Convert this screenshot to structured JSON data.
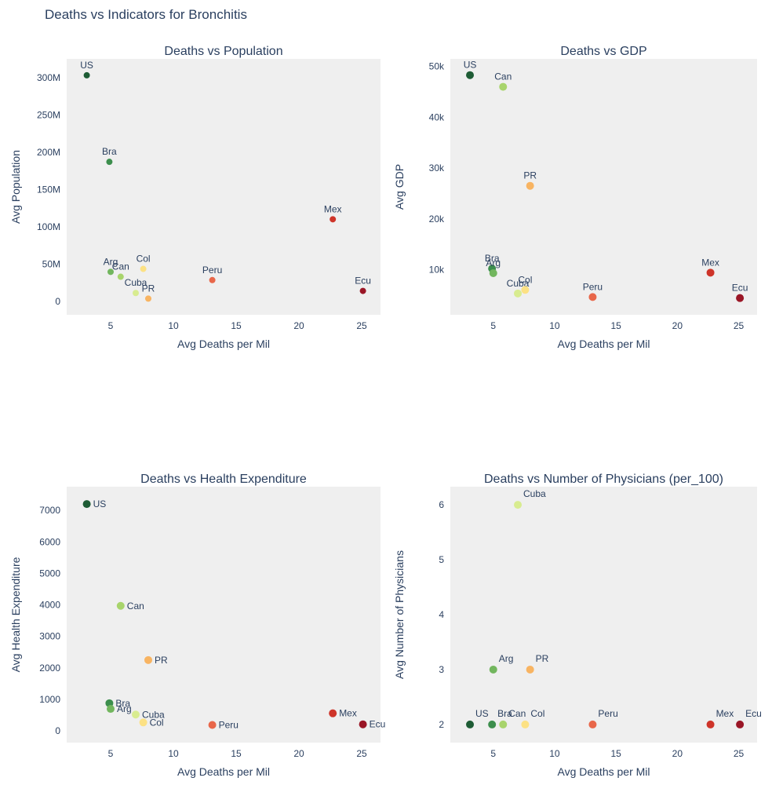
{
  "title": "Deaths vs Indicators for Bronchitis",
  "countries": [
    "US",
    "Bra",
    "Arg",
    "Can",
    "Cuba",
    "Col",
    "PR",
    "Peru",
    "Mex",
    "Ecu"
  ],
  "colors": {
    "US": "#1e5c35",
    "Bra": "#3c8e4d",
    "Arg": "#72b65e",
    "Can": "#a8d46c",
    "Cuba": "#d8ec90",
    "Col": "#fce184",
    "PR": "#f8b462",
    "Peru": "#e8674a",
    "Mex": "#ce3429",
    "Ecu": "#9a1626"
  },
  "chart_data": [
    {
      "type": "scatter",
      "title": "Deaths vs Population",
      "xlabel": "Avg Deaths per Mil",
      "ylabel": "Avg Population",
      "xlim": [
        1.5,
        26.5
      ],
      "ylim": [
        -18000000,
        325000000
      ],
      "xticks": [
        5,
        10,
        15,
        20,
        25
      ],
      "xtick_labels": [
        "5",
        "10",
        "15",
        "20",
        "25"
      ],
      "yticks": [
        0,
        50000000,
        100000000,
        150000000,
        200000000,
        250000000,
        300000000
      ],
      "ytick_labels": [
        "0",
        "50M",
        "100M",
        "150M",
        "200M",
        "250M",
        "300M"
      ],
      "label_position": "top",
      "points": [
        {
          "label": "US",
          "x": 3.1,
          "y": 303000000
        },
        {
          "label": "Bra",
          "x": 4.9,
          "y": 187000000
        },
        {
          "label": "Arg",
          "x": 5.0,
          "y": 39500000
        },
        {
          "label": "Can",
          "x": 5.8,
          "y": 33000000
        },
        {
          "label": "Cuba",
          "x": 7.0,
          "y": 11200000
        },
        {
          "label": "Col",
          "x": 7.6,
          "y": 43500000
        },
        {
          "label": "PR",
          "x": 8.0,
          "y": 3700000
        },
        {
          "label": "Peru",
          "x": 13.1,
          "y": 28500000
        },
        {
          "label": "Mex",
          "x": 22.7,
          "y": 110000000
        },
        {
          "label": "Ecu",
          "x": 25.1,
          "y": 14000000
        }
      ]
    },
    {
      "type": "scatter",
      "title": "Deaths vs GDP",
      "xlabel": "Avg Deaths per Mil",
      "ylabel": "Avg GDP",
      "xlim": [
        1.5,
        26.5
      ],
      "ylim": [
        1100,
        51500
      ],
      "xticks": [
        5,
        10,
        15,
        20,
        25
      ],
      "xtick_labels": [
        "5",
        "10",
        "15",
        "20",
        "25"
      ],
      "yticks": [
        10000,
        20000,
        30000,
        40000,
        50000
      ],
      "ytick_labels": [
        "10k",
        "20k",
        "30k",
        "40k",
        "50k"
      ],
      "label_position": "top",
      "points": [
        {
          "label": "US",
          "x": 3.1,
          "y": 48300
        },
        {
          "label": "Can",
          "x": 5.8,
          "y": 46000
        },
        {
          "label": "PR",
          "x": 8.0,
          "y": 26500
        },
        {
          "label": "Bra",
          "x": 4.9,
          "y": 10200
        },
        {
          "label": "Arg",
          "x": 5.0,
          "y": 9300
        },
        {
          "label": "Cuba",
          "x": 7.0,
          "y": 5300
        },
        {
          "label": "Col",
          "x": 7.6,
          "y": 6000
        },
        {
          "label": "Peru",
          "x": 13.1,
          "y": 4600
        },
        {
          "label": "Mex",
          "x": 22.7,
          "y": 9400
        },
        {
          "label": "Ecu",
          "x": 25.1,
          "y": 4400
        }
      ]
    },
    {
      "type": "scatter",
      "title": "Deaths vs Health Expenditure",
      "xlabel": "Avg Deaths per Mil",
      "ylabel": "Avg Health Expenditure",
      "xlim": [
        1.5,
        26.5
      ],
      "ylim": [
        -370,
        7750
      ],
      "xticks": [
        5,
        10,
        15,
        20,
        25
      ],
      "xtick_labels": [
        "5",
        "10",
        "15",
        "20",
        "25"
      ],
      "yticks": [
        0,
        1000,
        2000,
        3000,
        4000,
        5000,
        6000,
        7000
      ],
      "ytick_labels": [
        "0",
        "1000",
        "2000",
        "3000",
        "4000",
        "5000",
        "6000",
        "7000"
      ],
      "label_position": "right",
      "points": [
        {
          "label": "US",
          "x": 3.1,
          "y": 7200
        },
        {
          "label": "Can",
          "x": 5.8,
          "y": 3970
        },
        {
          "label": "PR",
          "x": 8.0,
          "y": 2250
        },
        {
          "label": "Bra",
          "x": 4.9,
          "y": 880
        },
        {
          "label": "Arg",
          "x": 5.0,
          "y": 700
        },
        {
          "label": "Cuba",
          "x": 7.0,
          "y": 520
        },
        {
          "label": "Col",
          "x": 7.6,
          "y": 270
        },
        {
          "label": "Peru",
          "x": 13.1,
          "y": 190
        },
        {
          "label": "Mex",
          "x": 22.7,
          "y": 560
        },
        {
          "label": "Ecu",
          "x": 25.1,
          "y": 210
        }
      ]
    },
    {
      "type": "scatter",
      "title": "Deaths vs Number of Physicians (per_100)",
      "xlabel": "Avg Deaths per Mil",
      "ylabel": "Avg Number of Physicians",
      "xlim": [
        1.5,
        26.5
      ],
      "ylim": [
        1.67,
        6.33
      ],
      "xticks": [
        5,
        10,
        15,
        20,
        25
      ],
      "xtick_labels": [
        "5",
        "10",
        "15",
        "20",
        "25"
      ],
      "yticks": [
        2,
        3,
        4,
        5,
        6
      ],
      "ytick_labels": [
        "2",
        "3",
        "4",
        "5",
        "6"
      ],
      "label_position": "top-right",
      "points": [
        {
          "label": "Cuba",
          "x": 7.0,
          "y": 6
        },
        {
          "label": "Arg",
          "x": 5.0,
          "y": 3
        },
        {
          "label": "PR",
          "x": 8.0,
          "y": 3
        },
        {
          "label": "US",
          "x": 3.1,
          "y": 2
        },
        {
          "label": "Bra",
          "x": 4.9,
          "y": 2
        },
        {
          "label": "Can",
          "x": 5.8,
          "y": 2
        },
        {
          "label": "Col",
          "x": 7.6,
          "y": 2
        },
        {
          "label": "Peru",
          "x": 13.1,
          "y": 2
        },
        {
          "label": "Mex",
          "x": 22.7,
          "y": 2
        },
        {
          "label": "Ecu",
          "x": 25.1,
          "y": 2
        }
      ]
    }
  ]
}
